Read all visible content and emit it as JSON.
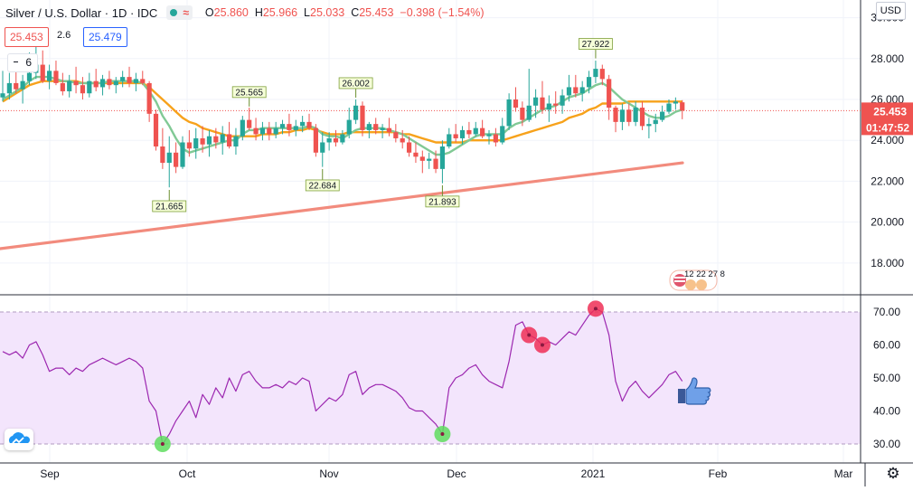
{
  "header": {
    "symbol": "Silver / U.S. Dollar · 1D · IDC",
    "open_label": "O",
    "open": "25.860",
    "high_label": "H",
    "high": "25.966",
    "low_label": "L",
    "low": "25.033",
    "close_label": "C",
    "close": "25.453",
    "change": "−0.398 (−1.54%)",
    "unit": "USD"
  },
  "legend": {
    "bid": "25.453",
    "ask": "25.479",
    "spread_fragment": "2.6",
    "indicator_count": "6",
    "event_counts": "12 22 27  8"
  },
  "colors": {
    "up": "#26a69a",
    "down": "#ef5350",
    "ma_fast": "#81c995",
    "ma_mid": "#f7a21b",
    "ma_slow": "#f28b7d",
    "rsi_line": "#9c27b0",
    "rsi_band": "#f3e5fc",
    "marker_low": "#5fdd5f",
    "marker_high": "#ef2f56"
  },
  "chart_data": [
    {
      "type": "candlestick",
      "title": "Silver / U.S. Dollar",
      "timeframe": "1D",
      "last_price": 25.453,
      "countdown": "01:47:52",
      "ylim": [
        16.8,
        30.6
      ],
      "y_ticks": [
        "30.000",
        "28.000",
        "26.000",
        "24.000",
        "22.000",
        "20.000",
        "18.000"
      ],
      "x_ticks": [
        "Sep",
        "Oct",
        "Nov",
        "Dec",
        "2021",
        "Feb",
        "Mar"
      ],
      "price_labels": [
        {
          "text": "21.665",
          "value": 21.665,
          "kind": "low"
        },
        {
          "text": "25.565",
          "value": 25.565,
          "kind": "high"
        },
        {
          "text": "22.684",
          "value": 22.684,
          "kind": "low"
        },
        {
          "text": "26.002",
          "value": 26.002,
          "kind": "high"
        },
        {
          "text": "21.893",
          "value": 21.893,
          "kind": "low"
        },
        {
          "text": "27.922",
          "value": 27.922,
          "kind": "high"
        }
      ],
      "ohlc": [
        [
          26.1,
          27.4,
          25.9,
          26.3
        ],
        [
          26.3,
          27.3,
          26.0,
          26.8
        ],
        [
          26.8,
          27.5,
          26.3,
          26.5
        ],
        [
          26.5,
          27.2,
          25.8,
          26.9
        ],
        [
          26.9,
          28.3,
          26.7,
          27.3
        ],
        [
          27.3,
          28.9,
          27.0,
          27.7
        ],
        [
          27.7,
          28.4,
          26.8,
          26.9
        ],
        [
          26.9,
          27.7,
          26.5,
          27.4
        ],
        [
          27.4,
          27.9,
          26.7,
          26.8
        ],
        [
          26.8,
          27.3,
          26.2,
          26.4
        ],
        [
          26.4,
          27.2,
          26.1,
          26.9
        ],
        [
          26.9,
          27.6,
          26.3,
          26.7
        ],
        [
          26.7,
          27.1,
          26.0,
          26.3
        ],
        [
          26.3,
          27.3,
          26.1,
          26.9
        ],
        [
          26.9,
          27.5,
          26.4,
          26.6
        ],
        [
          26.6,
          27.2,
          26.2,
          27.0
        ],
        [
          27.0,
          27.4,
          26.5,
          26.7
        ],
        [
          26.7,
          27.1,
          26.3,
          26.9
        ],
        [
          26.9,
          27.4,
          26.6,
          27.1
        ],
        [
          27.1,
          27.6,
          26.6,
          26.8
        ],
        [
          26.8,
          27.3,
          26.4,
          27.0
        ],
        [
          27.0,
          27.4,
          26.7,
          26.8
        ],
        [
          26.8,
          26.9,
          24.9,
          25.3
        ],
        [
          25.3,
          25.5,
          23.5,
          23.7
        ],
        [
          23.7,
          24.6,
          22.6,
          22.9
        ],
        [
          22.9,
          24.2,
          21.7,
          23.4
        ],
        [
          23.4,
          23.9,
          22.4,
          22.7
        ],
        [
          22.7,
          24.2,
          22.6,
          23.9
        ],
        [
          23.9,
          24.5,
          23.2,
          23.6
        ],
        [
          23.6,
          24.6,
          23.1,
          24.1
        ],
        [
          24.1,
          24.7,
          23.4,
          23.8
        ],
        [
          23.8,
          24.5,
          23.2,
          24.2
        ],
        [
          24.2,
          24.6,
          23.6,
          23.9
        ],
        [
          23.9,
          24.7,
          23.3,
          24.3
        ],
        [
          24.3,
          24.9,
          23.6,
          23.7
        ],
        [
          23.7,
          24.6,
          23.3,
          24.2
        ],
        [
          24.2,
          25.2,
          24.0,
          25.0
        ],
        [
          25.0,
          25.6,
          24.5,
          24.6
        ],
        [
          24.6,
          25.1,
          24.0,
          24.3
        ],
        [
          24.3,
          24.9,
          24.0,
          24.6
        ],
        [
          24.6,
          24.9,
          24.0,
          24.3
        ],
        [
          24.3,
          24.9,
          24.1,
          24.6
        ],
        [
          24.6,
          25.0,
          24.3,
          24.8
        ],
        [
          24.8,
          25.3,
          24.2,
          24.5
        ],
        [
          24.5,
          25.0,
          24.2,
          24.7
        ],
        [
          24.7,
          25.2,
          24.4,
          24.9
        ],
        [
          24.9,
          25.3,
          24.5,
          24.6
        ],
        [
          24.6,
          24.8,
          23.2,
          23.4
        ],
        [
          23.4,
          24.4,
          22.7,
          23.9
        ],
        [
          23.9,
          24.4,
          23.5,
          24.1
        ],
        [
          24.1,
          24.5,
          23.7,
          23.9
        ],
        [
          23.9,
          24.5,
          23.8,
          24.3
        ],
        [
          24.3,
          25.6,
          24.1,
          25.0
        ],
        [
          25.0,
          26.0,
          24.8,
          25.7
        ],
        [
          25.7,
          25.9,
          24.2,
          24.5
        ],
        [
          24.5,
          24.9,
          24.1,
          24.8
        ],
        [
          24.8,
          25.1,
          24.3,
          24.5
        ],
        [
          24.5,
          24.8,
          24.1,
          24.6
        ],
        [
          24.6,
          25.1,
          24.2,
          24.4
        ],
        [
          24.4,
          24.8,
          23.9,
          24.1
        ],
        [
          24.1,
          24.5,
          23.6,
          23.9
        ],
        [
          23.9,
          24.2,
          23.2,
          23.4
        ],
        [
          23.4,
          23.9,
          22.9,
          23.2
        ],
        [
          23.2,
          23.5,
          22.4,
          23.0
        ],
        [
          23.0,
          23.4,
          22.6,
          23.1
        ],
        [
          23.1,
          23.5,
          22.4,
          22.6
        ],
        [
          22.6,
          24.0,
          21.9,
          23.7
        ],
        [
          23.7,
          24.6,
          23.6,
          24.3
        ],
        [
          24.3,
          24.8,
          23.9,
          24.1
        ],
        [
          24.1,
          24.7,
          23.8,
          24.5
        ],
        [
          24.5,
          24.9,
          24.1,
          24.3
        ],
        [
          24.3,
          24.9,
          24.2,
          24.6
        ],
        [
          24.6,
          25.0,
          24.1,
          24.2
        ],
        [
          24.2,
          24.5,
          23.8,
          24.3
        ],
        [
          24.3,
          24.6,
          23.7,
          23.9
        ],
        [
          23.9,
          25.1,
          23.8,
          24.7
        ],
        [
          24.7,
          26.3,
          24.5,
          26.0
        ],
        [
          26.0,
          26.6,
          25.4,
          25.6
        ],
        [
          25.6,
          25.9,
          24.7,
          25.0
        ],
        [
          25.0,
          27.5,
          24.9,
          25.7
        ],
        [
          25.7,
          26.5,
          25.1,
          26.1
        ],
        [
          26.1,
          26.9,
          25.3,
          25.5
        ],
        [
          25.5,
          26.2,
          24.9,
          25.8
        ],
        [
          25.8,
          26.4,
          25.3,
          25.7
        ],
        [
          25.7,
          26.5,
          25.3,
          26.2
        ],
        [
          26.2,
          27.2,
          25.9,
          26.6
        ],
        [
          26.6,
          27.2,
          26.1,
          26.3
        ],
        [
          26.3,
          26.9,
          25.9,
          26.6
        ],
        [
          26.6,
          27.4,
          26.3,
          27.1
        ],
        [
          27.1,
          27.9,
          26.8,
          27.5
        ],
        [
          27.5,
          27.7,
          26.7,
          27.0
        ],
        [
          27.0,
          27.2,
          25.0,
          25.6
        ],
        [
          25.6,
          25.7,
          24.4,
          24.9
        ],
        [
          24.9,
          25.8,
          24.5,
          25.5
        ],
        [
          25.5,
          25.8,
          24.7,
          24.9
        ],
        [
          24.9,
          25.9,
          24.7,
          25.6
        ],
        [
          25.6,
          25.9,
          24.5,
          24.7
        ],
        [
          24.7,
          25.1,
          24.1,
          24.8
        ],
        [
          24.8,
          25.3,
          24.4,
          25.0
        ],
        [
          25.0,
          25.7,
          24.9,
          25.4
        ],
        [
          25.4,
          26.0,
          25.3,
          25.8
        ],
        [
          25.8,
          26.1,
          25.5,
          25.9
        ],
        [
          25.86,
          25.966,
          25.033,
          25.453
        ]
      ],
      "ma_fast": [
        26.0,
        26.2,
        26.4,
        26.6,
        26.9,
        27.1,
        27.1,
        27.1,
        27.0,
        26.9,
        26.9,
        26.8,
        26.8,
        26.8,
        26.8,
        26.8,
        26.9,
        26.9,
        26.9,
        26.9,
        26.9,
        26.8,
        26.4,
        25.9,
        25.2,
        24.7,
        24.1,
        23.6,
        23.4,
        23.5,
        23.6,
        23.7,
        23.8,
        23.9,
        24.0,
        24.0,
        24.3,
        24.5,
        24.5,
        24.6,
        24.6,
        24.6,
        24.6,
        24.6,
        24.6,
        24.6,
        24.7,
        24.6,
        24.3,
        24.2,
        24.2,
        24.1,
        24.3,
        24.5,
        24.6,
        24.6,
        24.6,
        24.6,
        24.5,
        24.4,
        24.3,
        24.1,
        23.9,
        23.7,
        23.5,
        23.3,
        23.3,
        23.4,
        23.6,
        23.8,
        24.0,
        24.2,
        24.3,
        24.3,
        24.3,
        24.3,
        24.6,
        24.8,
        24.9,
        25.1,
        25.3,
        25.5,
        25.6,
        25.7,
        25.9,
        26.1,
        26.2,
        26.3,
        26.5,
        26.7,
        26.8,
        26.6,
        26.3,
        26.0,
        25.8,
        25.6,
        25.4,
        25.2,
        25.1,
        25.1,
        25.2,
        25.4,
        25.5
      ],
      "ma_mid": [
        25.9,
        26.1,
        26.3,
        26.5,
        26.7,
        26.8,
        26.9,
        26.9,
        26.9,
        26.9,
        26.9,
        26.9,
        26.8,
        26.8,
        26.8,
        26.8,
        26.8,
        26.8,
        26.8,
        26.8,
        26.8,
        26.8,
        26.6,
        26.3,
        26.0,
        25.7,
        25.4,
        25.1,
        24.9,
        24.8,
        24.6,
        24.5,
        24.4,
        24.3,
        24.2,
        24.2,
        24.2,
        24.2,
        24.2,
        24.3,
        24.3,
        24.3,
        24.4,
        24.4,
        24.5,
        24.5,
        24.6,
        24.5,
        24.4,
        24.3,
        24.3,
        24.3,
        24.4,
        24.4,
        24.4,
        24.4,
        24.4,
        24.4,
        24.4,
        24.4,
        24.3,
        24.3,
        24.2,
        24.1,
        24.0,
        23.9,
        23.9,
        23.9,
        23.9,
        23.9,
        24.0,
        24.0,
        24.0,
        24.0,
        24.0,
        24.0,
        24.1,
        24.2,
        24.3,
        24.4,
        24.5,
        24.6,
        24.7,
        24.8,
        24.9,
        25.1,
        25.2,
        25.3,
        25.5,
        25.6,
        25.8,
        25.8,
        25.8,
        25.8,
        25.9,
        25.9,
        25.9,
        25.9,
        25.9,
        25.9,
        25.9,
        25.9,
        25.9
      ],
      "ma_slow_start": 18.7,
      "ma_slow_end": 22.9
    },
    {
      "type": "line",
      "title": "RSI",
      "ylim": [
        26,
        73
      ],
      "y_ticks": [
        "70.00",
        "60.00",
        "50.00",
        "40.00",
        "30.00"
      ],
      "band": [
        30,
        70
      ],
      "values": [
        58,
        57,
        58,
        56,
        60,
        61,
        57,
        52,
        53,
        53,
        51,
        53,
        52,
        54,
        55,
        56,
        55,
        54,
        55,
        56,
        55,
        53,
        43,
        40,
        30,
        33,
        37,
        40,
        43,
        38,
        45,
        42,
        47,
        44,
        50,
        46,
        51,
        52,
        49,
        47,
        47,
        48,
        47,
        49,
        48,
        50,
        49,
        40,
        42,
        44,
        43,
        45,
        51,
        52,
        45,
        47,
        48,
        48,
        47,
        46,
        44,
        41,
        40,
        40,
        38,
        36,
        33,
        47,
        50,
        51,
        53,
        54,
        51,
        49,
        48,
        47,
        55,
        66,
        67,
        63,
        62,
        60,
        61,
        60,
        62,
        64,
        63,
        66,
        69,
        71,
        70,
        63,
        49,
        43,
        47,
        49,
        46,
        44,
        46,
        48,
        51,
        52,
        49
      ],
      "markers": [
        {
          "index": 24,
          "kind": "low"
        },
        {
          "index": 66,
          "kind": "low"
        },
        {
          "index": 79,
          "kind": "high"
        },
        {
          "index": 81,
          "kind": "high"
        },
        {
          "index": 89,
          "kind": "high"
        }
      ]
    }
  ]
}
